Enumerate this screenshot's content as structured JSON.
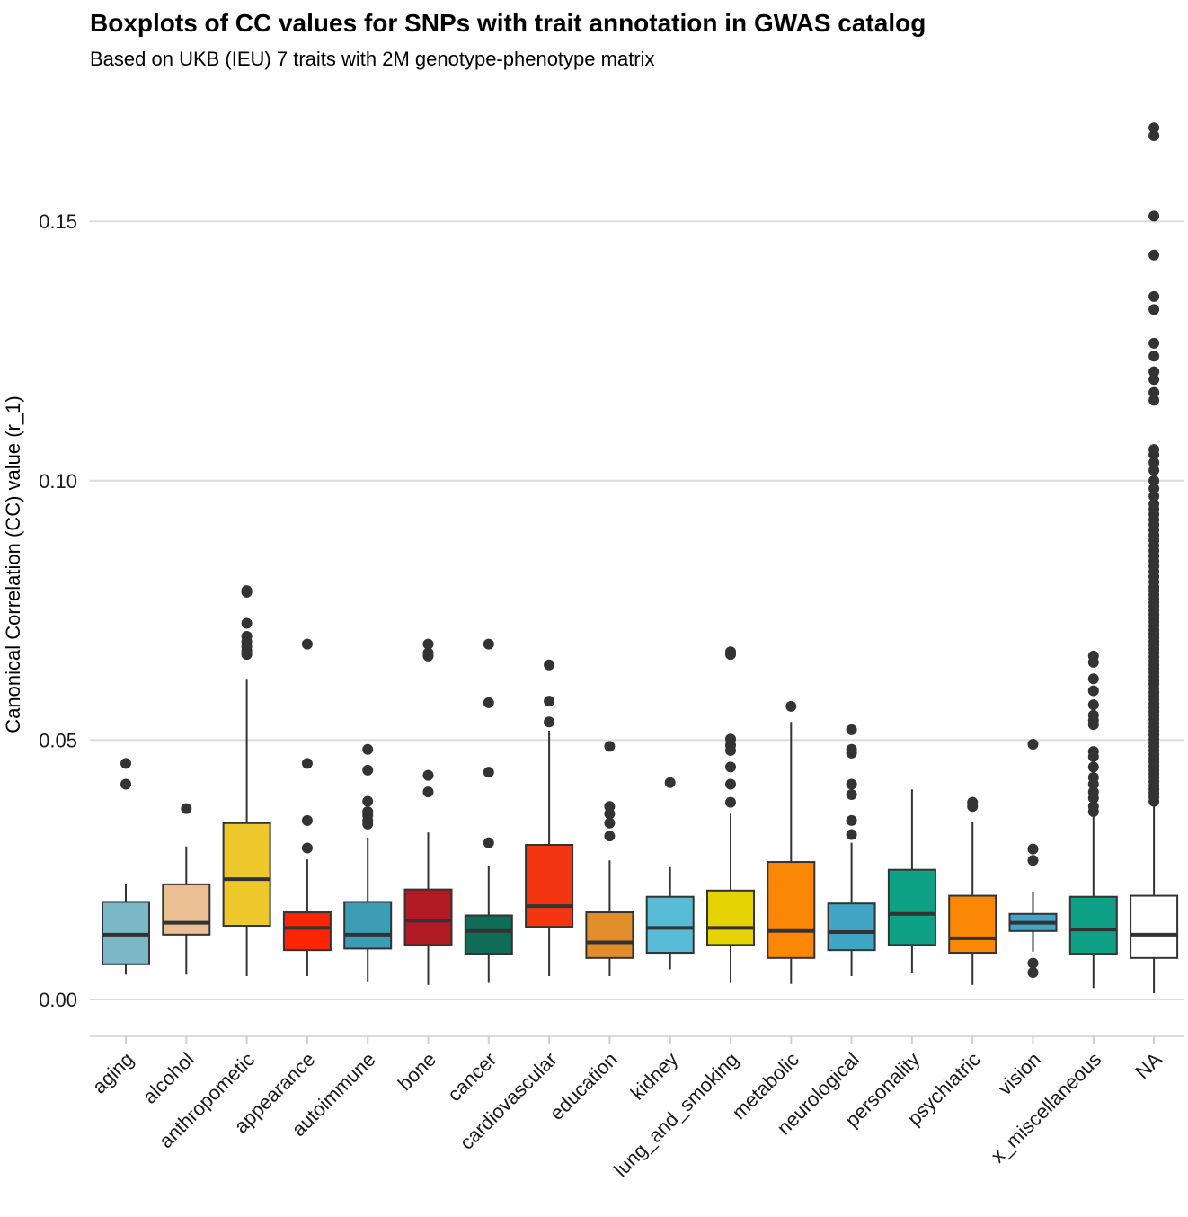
{
  "chart_data": {
    "type": "boxplot",
    "title": "Boxplots of CC values for SNPs with trait annotation in GWAS catalog",
    "subtitle": "Based on UKB (IEU) 7 traits with 2M genotype-phenotype matrix",
    "xlabel": "",
    "ylabel": "Canonical Correlation (CC) value (r_1)",
    "ylim": [
      -0.007,
      0.168
    ],
    "yticks": [
      0.0,
      0.05,
      0.1,
      0.15
    ],
    "ytick_labels": [
      "0.00",
      "0.05",
      "0.10",
      "0.15"
    ],
    "grid": true,
    "legend": "none",
    "categories": [
      {
        "name": "aging",
        "color": "#7ab8c8",
        "whisker_low": 0.0048,
        "q1": 0.0068,
        "median": 0.0125,
        "q3": 0.0188,
        "whisker_high": 0.0222,
        "outliers": [
          0.0415,
          0.0455
        ]
      },
      {
        "name": "alcohol",
        "color": "#e9bf93",
        "whisker_low": 0.0048,
        "q1": 0.0125,
        "median": 0.0148,
        "q3": 0.0222,
        "whisker_high": 0.0295,
        "outliers": [
          0.0368
        ]
      },
      {
        "name": "anthropometic",
        "color": "#ecc82d",
        "whisker_low": 0.0045,
        "q1": 0.0142,
        "median": 0.0232,
        "q3": 0.034,
        "whisker_high": 0.0618,
        "outliers": [
          0.0665,
          0.0672,
          0.068,
          0.069,
          0.07,
          0.0725,
          0.0785,
          0.0788
        ]
      },
      {
        "name": "appearance",
        "color": "#fd2305",
        "whisker_low": 0.0045,
        "q1": 0.0095,
        "median": 0.0138,
        "q3": 0.0168,
        "whisker_high": 0.027,
        "outliers": [
          0.0292,
          0.0345,
          0.0455,
          0.0685
        ]
      },
      {
        "name": "autoimmune",
        "color": "#3d9db4",
        "whisker_low": 0.0035,
        "q1": 0.0098,
        "median": 0.0125,
        "q3": 0.0188,
        "whisker_high": 0.0312,
        "outliers": [
          0.0338,
          0.0345,
          0.0355,
          0.0362,
          0.0382,
          0.0442,
          0.0482
        ]
      },
      {
        "name": "bone",
        "color": "#b11a22",
        "whisker_low": 0.0028,
        "q1": 0.0105,
        "median": 0.0152,
        "q3": 0.0212,
        "whisker_high": 0.0322,
        "outliers": [
          0.04,
          0.0432,
          0.0662,
          0.0668,
          0.0685
        ]
      },
      {
        "name": "cancer",
        "color": "#0f6c56",
        "whisker_low": 0.0032,
        "q1": 0.0088,
        "median": 0.0132,
        "q3": 0.0162,
        "whisker_high": 0.0258,
        "outliers": [
          0.0302,
          0.0438,
          0.0572,
          0.0685
        ]
      },
      {
        "name": "cardiovascular",
        "color": "#f33512",
        "whisker_low": 0.0045,
        "q1": 0.014,
        "median": 0.018,
        "q3": 0.0298,
        "whisker_high": 0.0518,
        "outliers": [
          0.0535,
          0.0575,
          0.0645
        ]
      },
      {
        "name": "education",
        "color": "#e08e2b",
        "whisker_low": 0.0045,
        "q1": 0.008,
        "median": 0.011,
        "q3": 0.0168,
        "whisker_high": 0.0268,
        "outliers": [
          0.0315,
          0.034,
          0.0358,
          0.0372,
          0.0488
        ]
      },
      {
        "name": "kidney",
        "color": "#57bbd6",
        "whisker_low": 0.0058,
        "q1": 0.009,
        "median": 0.0138,
        "q3": 0.0198,
        "whisker_high": 0.0255,
        "outliers": [
          0.0418
        ]
      },
      {
        "name": "lung_and_smoking",
        "color": "#e5d303",
        "whisker_low": 0.0032,
        "q1": 0.0105,
        "median": 0.0138,
        "q3": 0.021,
        "whisker_high": 0.0358,
        "outliers": [
          0.038,
          0.0415,
          0.0448,
          0.048,
          0.049,
          0.0502,
          0.0665,
          0.067
        ]
      },
      {
        "name": "metabolic",
        "color": "#fa8705",
        "whisker_low": 0.003,
        "q1": 0.008,
        "median": 0.0132,
        "q3": 0.0265,
        "whisker_high": 0.0535,
        "outliers": [
          0.0565
        ]
      },
      {
        "name": "neurological",
        "color": "#40a5c4",
        "whisker_low": 0.0045,
        "q1": 0.0095,
        "median": 0.013,
        "q3": 0.0185,
        "whisker_high": 0.0302,
        "outliers": [
          0.0318,
          0.0345,
          0.0395,
          0.0415,
          0.0475,
          0.0482,
          0.052
        ]
      },
      {
        "name": "personality",
        "color": "#0ea185",
        "whisker_low": 0.0052,
        "q1": 0.0105,
        "median": 0.0165,
        "q3": 0.025,
        "whisker_high": 0.0405,
        "outliers": []
      },
      {
        "name": "psychiatric",
        "color": "#fa8705",
        "whisker_low": 0.0028,
        "q1": 0.009,
        "median": 0.0118,
        "q3": 0.02,
        "whisker_high": 0.0342,
        "outliers": [
          0.0372,
          0.038
        ]
      },
      {
        "name": "vision",
        "color": "#3ea6c9",
        "whisker_low": 0.0092,
        "q1": 0.0132,
        "median": 0.0148,
        "q3": 0.0165,
        "whisker_high": 0.0208,
        "outliers": [
          0.0052,
          0.007,
          0.0268,
          0.029,
          0.0492
        ]
      },
      {
        "name": "x_miscellaneous",
        "color": "#0ea185",
        "whisker_low": 0.0022,
        "q1": 0.0088,
        "median": 0.0135,
        "q3": 0.0198,
        "whisker_high": 0.0355,
        "outliers": [
          0.0362,
          0.0372,
          0.0388,
          0.04,
          0.0415,
          0.0428,
          0.0448,
          0.0468,
          0.0478,
          0.053,
          0.0538,
          0.0548,
          0.0568,
          0.0595,
          0.0618,
          0.065,
          0.0662
        ]
      },
      {
        "name": "NA",
        "color": "#ffffff",
        "whisker_low": 0.0012,
        "q1": 0.008,
        "median": 0.0125,
        "q3": 0.02,
        "whisker_high": 0.0378,
        "outliers": [
          0.0382,
          0.039,
          0.0398,
          0.0405,
          0.0412,
          0.042,
          0.0428,
          0.0435,
          0.0442,
          0.045,
          0.0458,
          0.0465,
          0.0472,
          0.048,
          0.0488,
          0.0495,
          0.0502,
          0.051,
          0.0518,
          0.0525,
          0.0532,
          0.054,
          0.0548,
          0.0555,
          0.0562,
          0.057,
          0.0578,
          0.0585,
          0.0592,
          0.06,
          0.0608,
          0.0615,
          0.0622,
          0.063,
          0.0638,
          0.0645,
          0.0652,
          0.066,
          0.0668,
          0.0675,
          0.0682,
          0.069,
          0.0698,
          0.0705,
          0.0712,
          0.072,
          0.0728,
          0.0735,
          0.0742,
          0.075,
          0.0758,
          0.0765,
          0.0772,
          0.078,
          0.0788,
          0.0795,
          0.0805,
          0.0815,
          0.0825,
          0.0835,
          0.0845,
          0.0855,
          0.0865,
          0.0875,
          0.0885,
          0.0895,
          0.0905,
          0.0915,
          0.0925,
          0.0935,
          0.0945,
          0.0955,
          0.097,
          0.0985,
          0.1,
          0.102,
          0.1035,
          0.105,
          0.106,
          0.1155,
          0.117,
          0.1195,
          0.121,
          0.124,
          0.1265,
          0.133,
          0.1355,
          0.1435,
          0.151,
          0.1665,
          0.168
        ]
      }
    ]
  }
}
